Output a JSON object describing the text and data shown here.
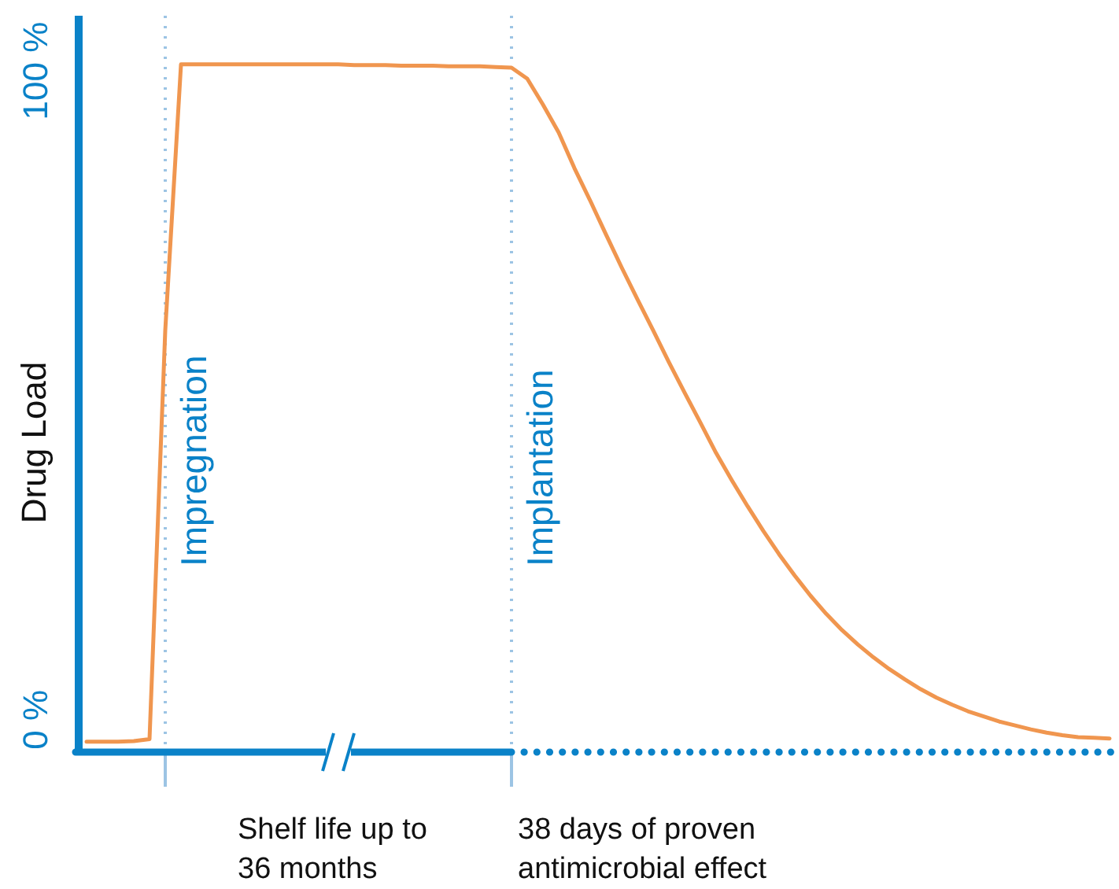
{
  "chart_data": {
    "type": "line",
    "ylabel": "Drug Load",
    "categories": [
      null,
      null,
      null,
      null,
      null,
      null,
      null,
      null,
      null,
      null,
      null,
      null,
      null,
      null,
      null,
      null,
      null,
      null,
      null,
      null,
      null,
      null,
      null,
      null,
      null,
      null,
      null,
      null,
      null,
      null,
      null,
      null,
      null,
      null,
      null,
      null,
      null,
      null,
      null,
      null,
      null,
      null,
      null,
      null,
      null,
      null,
      null,
      null,
      null,
      null,
      null,
      null,
      null,
      null,
      null,
      null,
      null,
      null,
      null,
      null,
      null,
      null,
      null,
      null,
      null,
      null
    ],
    "series": [
      {
        "color": "#f0964f",
        "values": [
          -3.4,
          -3.4,
          -3.4,
          -3.3,
          -3,
          60,
          101,
          101,
          101,
          101,
          101,
          101,
          101,
          101,
          101,
          101,
          101,
          100.9,
          100.9,
          100.9,
          100.8,
          100.8,
          100.8,
          100.7,
          100.7,
          100.7,
          100.6,
          100.5,
          98.8,
          94.8,
          90.5,
          85,
          80,
          74.8,
          69.7,
          64.8,
          60,
          55.1,
          50.4,
          45.8,
          41.1,
          36.9,
          32.9,
          29.1,
          25.5,
          22.2,
          19.1,
          16.3,
          13.8,
          11.6,
          9.6,
          7.8,
          6.2,
          4.7,
          3.4,
          2.3,
          1.3,
          0.5,
          -0.3,
          -0.9,
          -1.5,
          -2,
          -2.4,
          -2.7,
          -2.8,
          -2.9
        ]
      }
    ],
    "ylim": [
      -5,
      108.5
    ],
    "yticks": [
      {
        "value": 0,
        "label": "0 %"
      },
      {
        "value": 100,
        "label": "100 %"
      }
    ],
    "annotations": [
      "Impregnation",
      "Implantation",
      "Shelf life up to\n36 months",
      "38 days of proven antimicrobial effect"
    ]
  }
}
